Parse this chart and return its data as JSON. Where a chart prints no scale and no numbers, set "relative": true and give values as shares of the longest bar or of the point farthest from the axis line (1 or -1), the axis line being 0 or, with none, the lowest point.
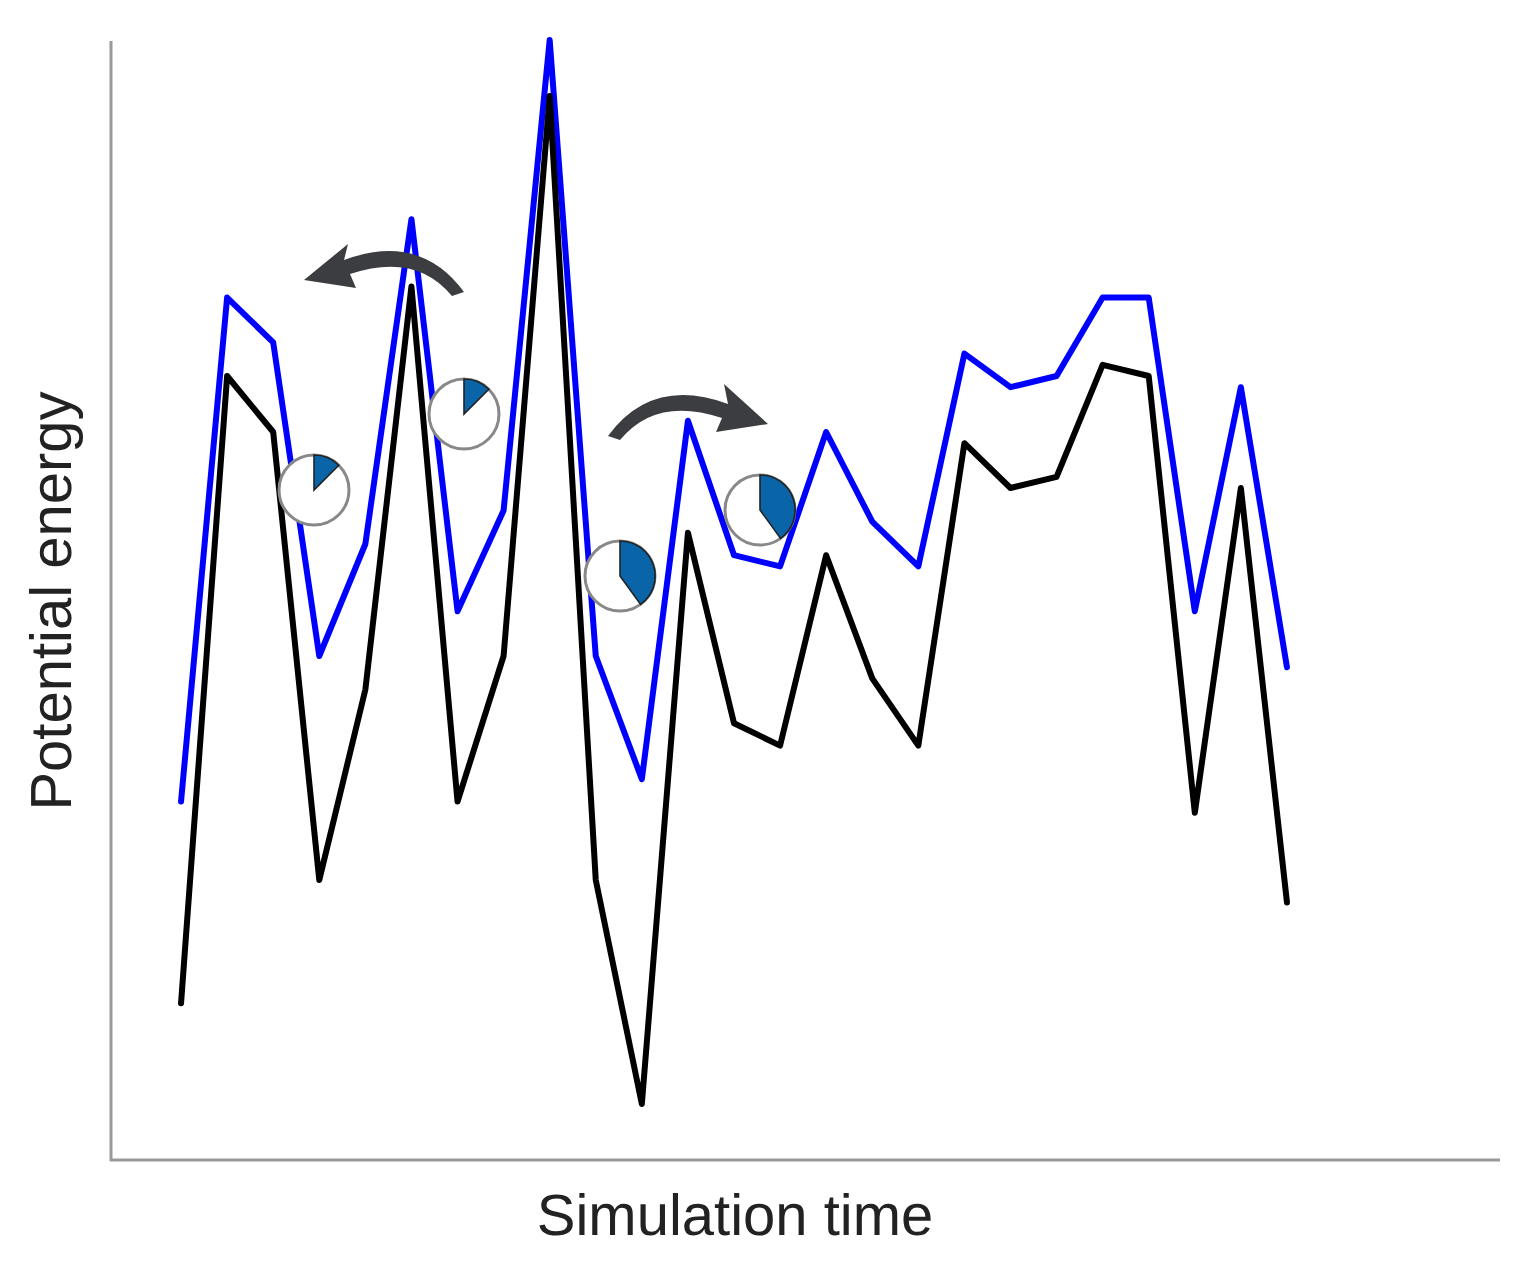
{
  "chart_data": {
    "type": "line",
    "xlabel": "Simulation time",
    "ylabel": "Potential energy",
    "relative": true,
    "grid": false,
    "marker": "none",
    "line_style": "solid",
    "categories": [
      null,
      null,
      null,
      null,
      null,
      null,
      null,
      null,
      null,
      null,
      null,
      null,
      null,
      null,
      null,
      null,
      null,
      null,
      null,
      null,
      null,
      null,
      null,
      null,
      null
    ],
    "series": [
      {
        "color": "#0000ff",
        "values": [
          0.32,
          0.77,
          0.73,
          0.45,
          0.55,
          0.84,
          0.49,
          0.58,
          1,
          0.45,
          0.34,
          0.66,
          0.54,
          0.53,
          0.65,
          0.57,
          0.53,
          0.72,
          0.69,
          0.7,
          0.77,
          0.77,
          0.49,
          0.69,
          0.44
        ]
      },
      {
        "color": "#000000",
        "values": [
          0.14,
          0.7,
          0.65,
          0.25,
          0.42,
          0.78,
          0.32,
          0.45,
          0.95,
          0.25,
          0.05,
          0.56,
          0.39,
          0.37,
          0.54,
          0.43,
          0.37,
          0.64,
          0.6,
          0.61,
          0.71,
          0.7,
          0.31,
          0.6,
          0.23
        ]
      }
    ]
  }
}
